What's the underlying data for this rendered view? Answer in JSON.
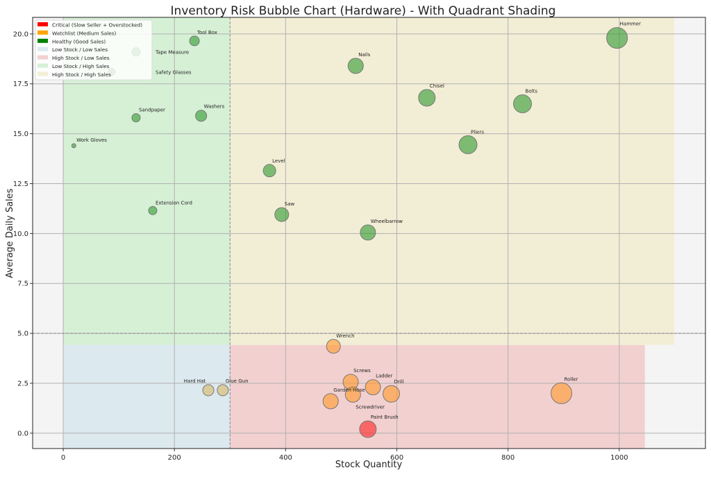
{
  "chart_data": {
    "type": "scatter",
    "title": "Inventory Risk Bubble Chart (Hardware) - With Quadrant Shading",
    "xlabel": "Stock Quantity",
    "ylabel": "Average Daily Sales",
    "xlim": [
      -55,
      1155
    ],
    "ylim": [
      -0.77,
      20.83
    ],
    "xticks": [
      0,
      200,
      400,
      600,
      800,
      1000
    ],
    "xtick_labels": [
      "0",
      "200",
      "400",
      "600",
      "800",
      "1000"
    ],
    "yticks": [
      0,
      2.5,
      5,
      7.5,
      10,
      12.5,
      15,
      17.5,
      20
    ],
    "ytick_labels": [
      "0.0",
      "2.5",
      "5.0",
      "7.5",
      "10.0",
      "12.5",
      "15.0",
      "17.5",
      "20.0"
    ],
    "grid": true,
    "thresholds": {
      "stock": 300,
      "sales": 5
    },
    "legend_position": "top-left",
    "legend": [
      {
        "label": "Critical (Slow Seller + Overstocked)",
        "color": "#ff0000"
      },
      {
        "label": "Watchlist (Medium Sales)",
        "color": "#ffa500"
      },
      {
        "label": "Healthy (Good Sales)",
        "color": "#008000"
      },
      {
        "label": "Low Stock / Low Sales",
        "color": "#dce9ee"
      },
      {
        "label": "High Stock / Low Sales",
        "color": "#f2d0d0"
      },
      {
        "label": "Low Stock / High Sales",
        "color": "#d6f0d6"
      },
      {
        "label": "High Stock / High Sales",
        "color": "#f2eed6"
      }
    ],
    "regions": [
      {
        "name": "Low Stock / Low Sales",
        "x": [
          0,
          300
        ],
        "y": [
          -0.77,
          4.42
        ],
        "color": "#dce9ee"
      },
      {
        "name": "High Stock / Low Sales",
        "x": [
          300,
          1046
        ],
        "y": [
          -0.77,
          4.42
        ],
        "color": "#f2d0d0"
      },
      {
        "name": "Low Stock / High Sales",
        "x": [
          0,
          300
        ],
        "y": [
          4.42,
          20.83
        ],
        "color": "#d6f0d6"
      },
      {
        "name": "High Stock / High Sales",
        "x": [
          300,
          1099
        ],
        "y": [
          4.42,
          20.83
        ],
        "color": "#f2eed6"
      }
    ],
    "category_colors": {
      "critical": "#ff2020",
      "watchlist": "#ff9a2a",
      "healthy": "#2e9a2e",
      "lowlow": "#d8b868"
    },
    "points": [
      {
        "label": "Hammer",
        "x": 996,
        "y": 19.8,
        "size": 15,
        "category": "healthy"
      },
      {
        "label": "Tool Box",
        "x": 236,
        "y": 19.65,
        "size": 7,
        "category": "healthy"
      },
      {
        "label": "Tape Measure",
        "x": 131,
        "y": 19.1,
        "size": 6,
        "category": "healthy"
      },
      {
        "label": "Safety Glasses",
        "x": 87,
        "y": 18.1,
        "size": 5,
        "category": "healthy"
      },
      {
        "label": "Nails",
        "x": 526,
        "y": 18.4,
        "size": 11,
        "category": "healthy"
      },
      {
        "label": "Chisel",
        "x": 654,
        "y": 16.8,
        "size": 12,
        "category": "healthy"
      },
      {
        "label": "Bolts",
        "x": 826,
        "y": 16.5,
        "size": 13,
        "category": "healthy"
      },
      {
        "label": "Sandpaper",
        "x": 131,
        "y": 15.8,
        "size": 6,
        "category": "healthy"
      },
      {
        "label": "Washers",
        "x": 248,
        "y": 15.9,
        "size": 8,
        "category": "healthy"
      },
      {
        "label": "Pliers",
        "x": 728,
        "y": 14.45,
        "size": 13,
        "category": "healthy"
      },
      {
        "label": "Work Gloves",
        "x": 19,
        "y": 14.4,
        "size": 3,
        "category": "healthy"
      },
      {
        "label": "Level",
        "x": 371,
        "y": 13.15,
        "size": 9,
        "category": "healthy"
      },
      {
        "label": "Extension Cord",
        "x": 161,
        "y": 11.15,
        "size": 6,
        "category": "healthy"
      },
      {
        "label": "Saw",
        "x": 393,
        "y": 10.95,
        "size": 10,
        "category": "healthy"
      },
      {
        "label": "Wheelbarrow",
        "x": 548,
        "y": 10.05,
        "size": 11,
        "category": "healthy"
      },
      {
        "label": "Wrench",
        "x": 486,
        "y": 4.35,
        "size": 10,
        "category": "watchlist"
      },
      {
        "label": "Screws",
        "x": 517,
        "y": 2.57,
        "size": 11,
        "category": "watchlist"
      },
      {
        "label": "Ladder",
        "x": 557,
        "y": 2.3,
        "size": 11,
        "category": "watchlist"
      },
      {
        "label": "Drill",
        "x": 590,
        "y": 1.97,
        "size": 12,
        "category": "watchlist"
      },
      {
        "label": "Screwdriver",
        "x": 521,
        "y": 1.93,
        "size": 11,
        "category": "watchlist"
      },
      {
        "label": "Garden Hose",
        "x": 481,
        "y": 1.6,
        "size": 11,
        "category": "watchlist"
      },
      {
        "label": "Roller",
        "x": 896,
        "y": 2.0,
        "size": 15,
        "category": "watchlist"
      },
      {
        "label": "Paint Brush",
        "x": 548,
        "y": 0.2,
        "size": 12,
        "category": "critical"
      },
      {
        "label": "Hard Hat",
        "x": 261,
        "y": 2.15,
        "size": 8,
        "category": "lowlow"
      },
      {
        "label": "Glue Gun",
        "x": 287,
        "y": 2.15,
        "size": 8,
        "category": "lowlow"
      }
    ]
  }
}
